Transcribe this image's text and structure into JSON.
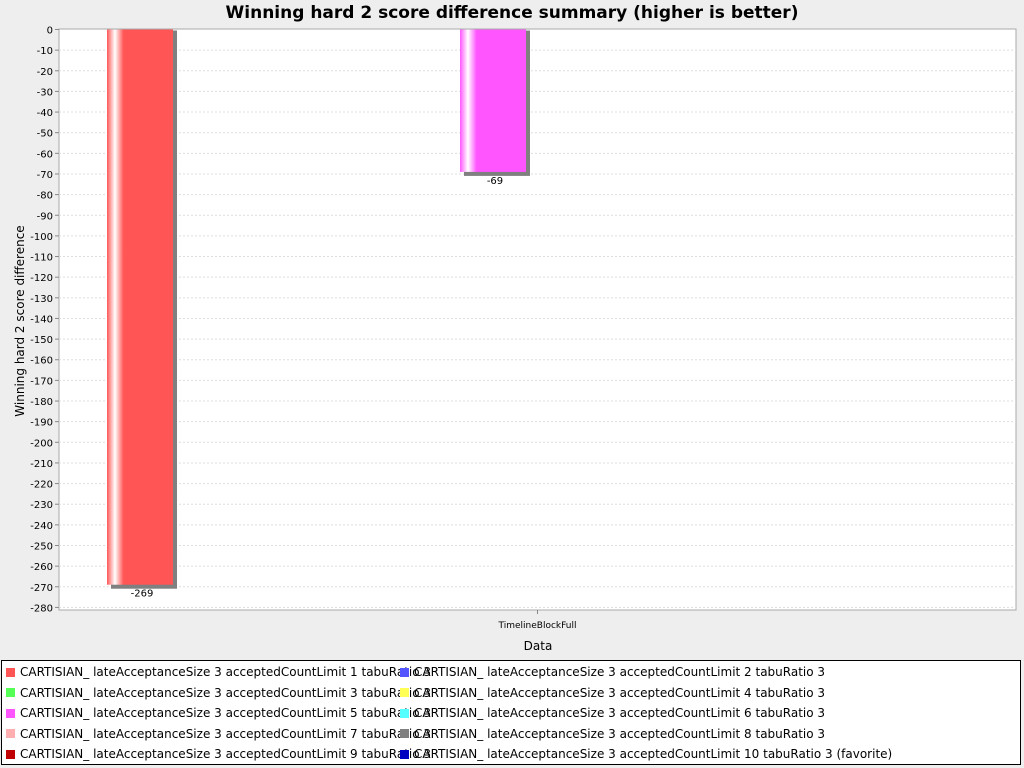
{
  "chart_data": {
    "type": "bar",
    "title": "Winning hard 2 score difference summary (higher is better)",
    "xlabel": "Data",
    "ylabel": "Winning hard 2 score difference",
    "categories": [
      "TimelineBlockFull"
    ],
    "ylim": [
      -280,
      0
    ],
    "ytick_step": 10,
    "grid": true,
    "legend_position": "bottom",
    "series": [
      {
        "name": "CARTISIAN_ lateAcceptanceSize 3 acceptedCountLimit 1 tabuRatio 3",
        "color": "#ff5555",
        "values": [
          -269
        ]
      },
      {
        "name": "CARTISIAN_ lateAcceptanceSize 3 acceptedCountLimit 2 tabuRatio 3",
        "color": "#5555ff",
        "values": [
          null
        ]
      },
      {
        "name": "CARTISIAN_ lateAcceptanceSize 3 acceptedCountLimit 3 tabuRatio 3",
        "color": "#55ff55",
        "values": [
          null
        ]
      },
      {
        "name": "CARTISIAN_ lateAcceptanceSize 3 acceptedCountLimit 4 tabuRatio 3",
        "color": "#ffff55",
        "values": [
          null
        ]
      },
      {
        "name": "CARTISIAN_ lateAcceptanceSize 3 acceptedCountLimit 5 tabuRatio 3",
        "color": "#ff55ff",
        "values": [
          -69
        ]
      },
      {
        "name": "CARTISIAN_ lateAcceptanceSize 3 acceptedCountLimit 6 tabuRatio 3",
        "color": "#55ffff",
        "values": [
          null
        ]
      },
      {
        "name": "CARTISIAN_ lateAcceptanceSize 3 acceptedCountLimit 7 tabuRatio 3",
        "color": "#ffafaf",
        "values": [
          null
        ]
      },
      {
        "name": "CARTISIAN_ lateAcceptanceSize 3 acceptedCountLimit 8 tabuRatio 3",
        "color": "#808080",
        "values": [
          null
        ]
      },
      {
        "name": "CARTISIAN_ lateAcceptanceSize 3 acceptedCountLimit 9 tabuRatio 3",
        "color": "#c00000",
        "values": [
          null
        ]
      },
      {
        "name": "CARTISIAN_ lateAcceptanceSize 3 acceptedCountLimit 10 tabuRatio 3 (favorite)",
        "color": "#0000c0",
        "values": [
          null
        ]
      }
    ]
  }
}
